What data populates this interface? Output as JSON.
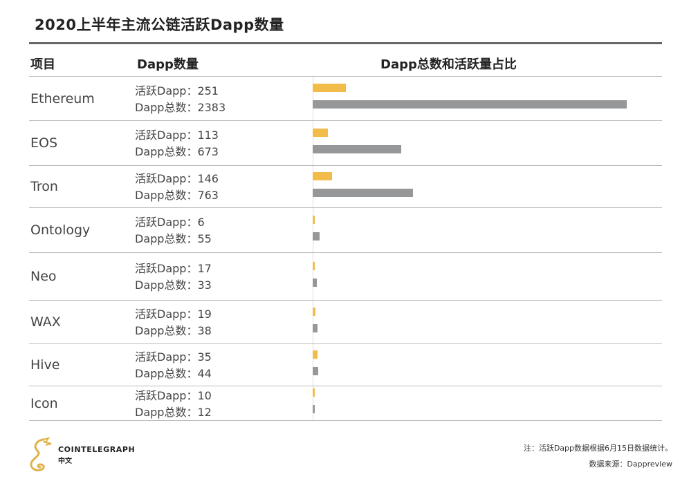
{
  "title": "2020上半年主流公链活跃Dapp数量",
  "headers": {
    "project": "项目",
    "count": "Dapp数量",
    "ratio": "Dapp总数和活跃量占比"
  },
  "labels": {
    "active_prefix": "活跃Dapp：",
    "total_prefix": "Dapp总数："
  },
  "colors": {
    "active": "#f1bc4a",
    "total": "#959799"
  },
  "chart_data": {
    "type": "bar",
    "orientation": "horizontal",
    "categories": [
      "Ethereum",
      "EOS",
      "Tron",
      "Ontology",
      "Neo",
      "WAX",
      "Hive",
      "Icon"
    ],
    "series": [
      {
        "name": "活跃Dapp",
        "values": [
          251,
          113,
          146,
          6,
          17,
          19,
          35,
          10
        ]
      },
      {
        "name": "Dapp总数",
        "values": [
          2383,
          673,
          763,
          55,
          33,
          38,
          44,
          12
        ]
      }
    ],
    "xlim": [
      0,
      2383
    ],
    "title": "2020上半年主流公链活跃Dapp数量"
  },
  "footer": {
    "note": "注：活跃Dapp数据根据6月15日数据统计。",
    "source": "数据来源：Dappreview",
    "brand": "COINTELEGRAPH",
    "brand_sub": "中文"
  }
}
